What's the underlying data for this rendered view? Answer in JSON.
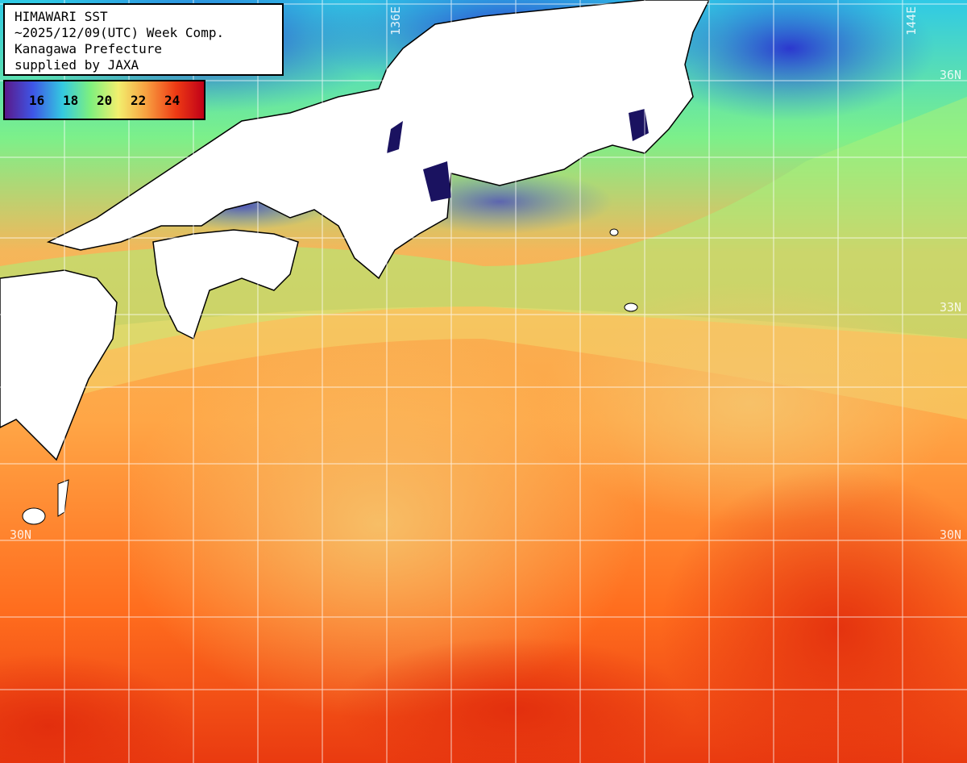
{
  "header": {
    "lines": [
      "HIMAWARI SST",
      "~2025/12/09(UTC) Week Comp.",
      "Kanagawa Prefecture",
      "supplied by JAXA"
    ]
  },
  "legend": {
    "labels": [
      "16",
      "18",
      "20",
      "22",
      "24"
    ],
    "gradient_colors": [
      "#5a1a8a",
      "#3e55e6",
      "#34c9e0",
      "#7ef07e",
      "#f2ef6e",
      "#f8a040",
      "#ee3a14",
      "#c00018"
    ]
  },
  "gridlines": {
    "lat_labels": [
      "36N",
      "33N",
      "30N"
    ],
    "lon_labels": [
      "136E",
      "144E"
    ]
  },
  "colors": {
    "land": "#ffffff",
    "coast": "#000000",
    "grid": "#ffffff",
    "cold_water": "#3a4fd8",
    "warm_water": "#ff8a1e",
    "hot_water": "#e4300f"
  }
}
